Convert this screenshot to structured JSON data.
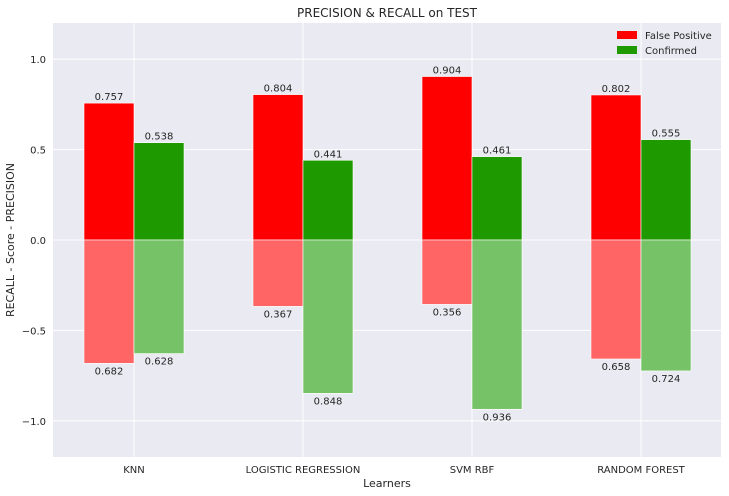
{
  "chart_data": {
    "type": "bar",
    "title": "PRECISION & RECALL on TEST",
    "xlabel": "Learners",
    "ylabel": "RECALL - Score - PRECISION",
    "categories": [
      "KNN",
      "LOGISTIC REGRESSION",
      "SVM RBF",
      "RANDOM FOREST"
    ],
    "ylim": [
      -1.2,
      1.2
    ],
    "yticks": [
      -1.0,
      -0.5,
      0.0,
      0.5,
      1.0
    ],
    "ytick_labels": [
      "−1.0",
      "−0.5",
      "0.0",
      "0.5",
      "1.0"
    ],
    "grid": true,
    "legend_position": "top-right",
    "series": [
      {
        "name": "False Positive",
        "color": "#ff0000",
        "recall_color": "#ff6565",
        "precision": [
          0.757,
          0.804,
          0.904,
          0.802
        ],
        "precision_labels": [
          "0.757",
          "0.804",
          "0.904",
          "0.802"
        ],
        "recall": [
          0.682,
          0.367,
          0.356,
          0.658
        ],
        "recall_labels": [
          "0.682",
          "0.367",
          "0.356",
          "0.658"
        ]
      },
      {
        "name": "Confirmed",
        "color": "#1f9900",
        "recall_color": "#76c266",
        "precision": [
          0.538,
          0.441,
          0.461,
          0.555
        ],
        "precision_labels": [
          "0.538",
          "0.441",
          "0.461",
          "0.555"
        ],
        "recall": [
          0.628,
          0.848,
          0.936,
          0.724
        ],
        "recall_labels": [
          "0.628",
          "0.848",
          "0.936",
          "0.724"
        ]
      }
    ]
  }
}
